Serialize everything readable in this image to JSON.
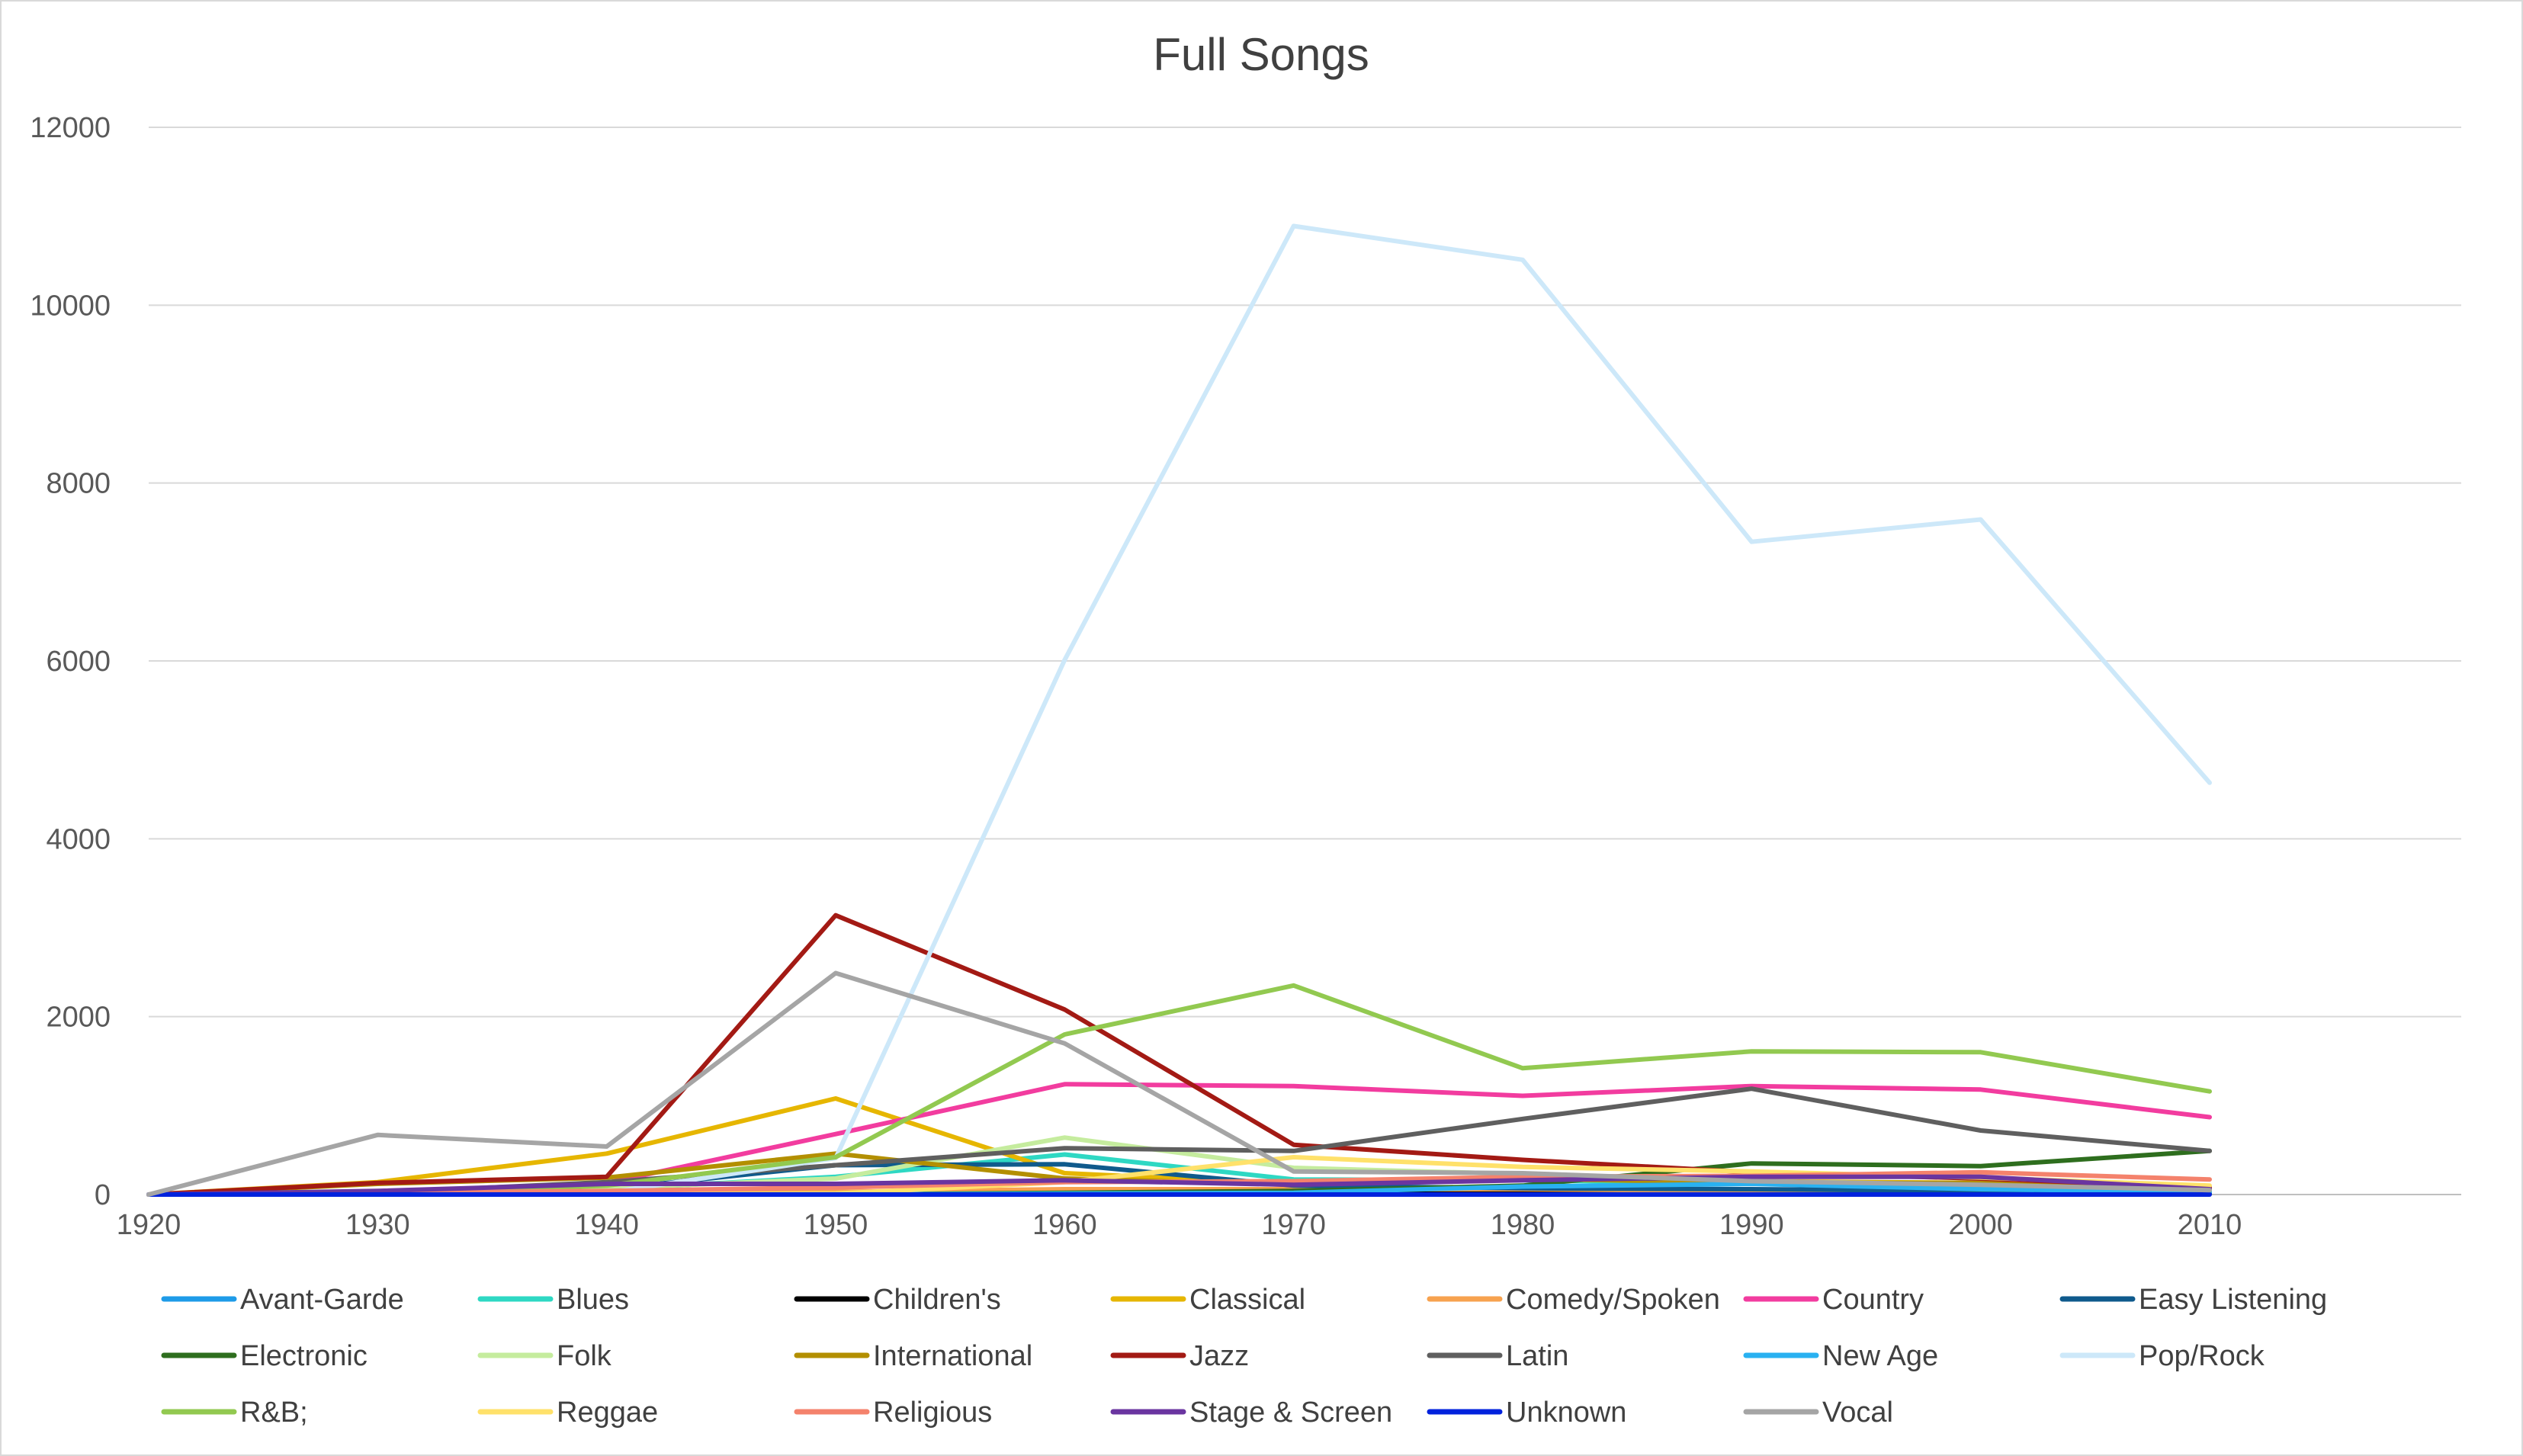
{
  "chart_data": {
    "type": "line",
    "title": "Full Songs",
    "xlabel": "",
    "ylabel": "",
    "x": [
      1920,
      1930,
      1940,
      1950,
      1960,
      1970,
      1980,
      1990,
      2000,
      2010
    ],
    "x_tick_labels": [
      "1920",
      "1930",
      "1940",
      "1950",
      "1960",
      "1970",
      "1980",
      "1990",
      "2000",
      "2010"
    ],
    "ylim": [
      0,
      12000
    ],
    "y_ticks": [
      0,
      2000,
      4000,
      6000,
      8000,
      10000,
      12000
    ],
    "y_tick_labels": [
      "0",
      "2000",
      "4000",
      "6000",
      "8000",
      "10000",
      "12000"
    ],
    "grid": "horizontal",
    "legend_position": "bottom",
    "series": [
      {
        "name": "Avant-Garde",
        "color": "#1e9be8",
        "values": [
          0,
          0,
          0,
          0,
          10,
          10,
          10,
          20,
          20,
          10
        ]
      },
      {
        "name": "Blues",
        "color": "#2ed8c3",
        "values": [
          0,
          10,
          60,
          200,
          450,
          170,
          160,
          130,
          90,
          30
        ]
      },
      {
        "name": "Children's",
        "color": "#000000",
        "values": [
          0,
          0,
          0,
          10,
          20,
          20,
          30,
          20,
          20,
          10
        ]
      },
      {
        "name": "Classical",
        "color": "#e6b600",
        "values": [
          0,
          140,
          460,
          1080,
          240,
          120,
          170,
          150,
          130,
          60
        ]
      },
      {
        "name": "Comedy/Spoken",
        "color": "#f7a24f",
        "values": [
          0,
          10,
          20,
          30,
          60,
          60,
          60,
          40,
          30,
          20
        ]
      },
      {
        "name": "Country",
        "color": "#f23c9f",
        "values": [
          0,
          20,
          130,
          680,
          1240,
          1220,
          1110,
          1220,
          1180,
          870
        ]
      },
      {
        "name": "Easy Listening",
        "color": "#0f5a8c",
        "values": [
          0,
          10,
          60,
          330,
          340,
          100,
          70,
          60,
          40,
          10
        ]
      },
      {
        "name": "Electronic",
        "color": "#2e6e1e",
        "values": [
          0,
          0,
          0,
          0,
          20,
          40,
          100,
          350,
          320,
          490
        ]
      },
      {
        "name": "Folk",
        "color": "#c5ec9e",
        "values": [
          0,
          30,
          70,
          180,
          640,
          300,
          230,
          150,
          110,
          60
        ]
      },
      {
        "name": "International",
        "color": "#b38f00",
        "values": [
          0,
          120,
          190,
          460,
          180,
          110,
          180,
          130,
          130,
          60
        ]
      },
      {
        "name": "Jazz",
        "color": "#a31a14",
        "values": [
          0,
          130,
          200,
          3140,
          2080,
          560,
          390,
          250,
          180,
          80
        ]
      },
      {
        "name": "Latin",
        "color": "#5f5f5f",
        "values": [
          0,
          20,
          140,
          330,
          520,
          490,
          850,
          1190,
          720,
          490
        ]
      },
      {
        "name": "New Age",
        "color": "#29b1f1",
        "values": [
          0,
          0,
          0,
          0,
          10,
          20,
          90,
          120,
          60,
          30
        ]
      },
      {
        "name": "Pop/Rock",
        "color": "#cde8f9",
        "values": [
          0,
          0,
          20,
          410,
          6010,
          10890,
          10510,
          7340,
          7590,
          4630
        ]
      },
      {
        "name": "R&B;",
        "color": "#92c950",
        "values": [
          0,
          10,
          100,
          420,
          1800,
          2350,
          1420,
          1610,
          1600,
          1160
        ]
      },
      {
        "name": "Reggae",
        "color": "#ffe16a",
        "values": [
          0,
          0,
          0,
          10,
          140,
          420,
          310,
          260,
          190,
          100
        ]
      },
      {
        "name": "Religious",
        "color": "#f4826c",
        "values": [
          0,
          20,
          40,
          80,
          140,
          150,
          200,
          210,
          250,
          170
        ]
      },
      {
        "name": "Stage & Screen",
        "color": "#6a35a0",
        "values": [
          0,
          40,
          120,
          120,
          160,
          110,
          160,
          200,
          200,
          60
        ]
      },
      {
        "name": "Unknown",
        "color": "#0022dd",
        "values": [
          0,
          0,
          0,
          0,
          0,
          0,
          0,
          0,
          0,
          0
        ]
      },
      {
        "name": "Vocal",
        "color": "#a5a5a5",
        "values": [
          0,
          670,
          540,
          2490,
          1700,
          260,
          240,
          150,
          110,
          50
        ]
      }
    ]
  }
}
